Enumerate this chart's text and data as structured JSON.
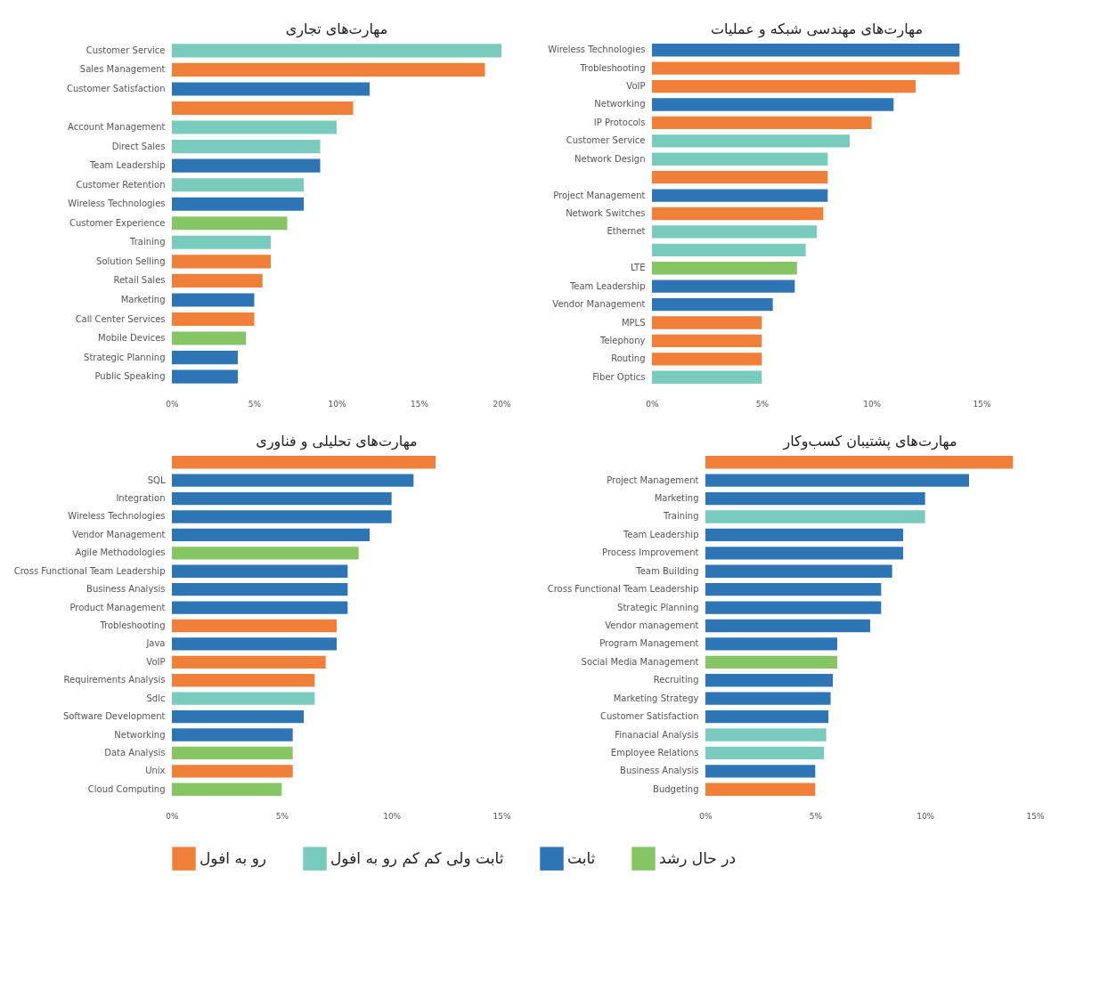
{
  "chart_data": [
    {
      "type": "bar",
      "orientation": "horizontal",
      "title": "مهارت‌های تجاری",
      "legend": "bottom",
      "categories": [
        "Customer Service",
        "Sales Management",
        "Customer Satisfaction",
        null,
        "Account Management",
        "Direct Sales",
        "Team Leadership",
        "Customer Retention",
        "Wireless Technologies",
        "Customer Experience",
        "Training",
        "Solution Selling",
        "Retail Sales",
        "Marketing",
        "Call Center Services",
        "Mobile Devices",
        "Strategic Planning",
        "Public Speaking"
      ],
      "series": [
        {
          "name": "رو به افول",
          "color": "#f07f3a",
          "values": [
            null,
            19,
            null,
            11,
            null,
            null,
            null,
            null,
            null,
            null,
            null,
            6,
            5.5,
            null,
            5,
            null,
            null,
            null
          ]
        },
        {
          "name": "ثابت ولی کم کم رو به افول",
          "color": "#79cbbd",
          "values": [
            20,
            null,
            null,
            null,
            10,
            9,
            null,
            8,
            null,
            null,
            6,
            null,
            null,
            null,
            null,
            null,
            null,
            null
          ]
        },
        {
          "name": "ثابت",
          "color": "#2e75b6",
          "values": [
            null,
            null,
            12,
            null,
            null,
            null,
            9,
            null,
            8,
            null,
            null,
            null,
            null,
            5,
            null,
            null,
            4,
            4
          ]
        },
        {
          "name": "در حال رشد",
          "color": "#86c563",
          "values": [
            null,
            null,
            null,
            null,
            null,
            null,
            null,
            null,
            null,
            7,
            null,
            null,
            null,
            null,
            null,
            4.5,
            null,
            null
          ]
        }
      ],
      "xlim": [
        0,
        20
      ],
      "xticks": [
        {
          "value": 0,
          "label": "0%"
        },
        {
          "value": 5,
          "label": "5%"
        },
        {
          "value": 10,
          "label": "10%"
        },
        {
          "value": 15,
          "label": "15%"
        },
        {
          "value": 20,
          "label": "20%"
        }
      ]
    },
    {
      "type": "bar",
      "orientation": "horizontal",
      "title": "مهارت‌های مهندسی شبکه و عملیات",
      "legend": "bottom",
      "categories": [
        "Wireless Technologies",
        "Trobleshooting",
        "VoIP",
        "Networking",
        "IP Protocols",
        "Customer Service",
        "Network Design",
        null,
        "Project Management",
        "Network Switches",
        "Ethernet",
        null,
        "LTE",
        "Team Leadership",
        "Vendor Management",
        "MPLS",
        "Telephony",
        "Routing",
        "Fiber Optics"
      ],
      "series": [
        {
          "name": "رو به افول",
          "color": "#f07f3a",
          "values": [
            null,
            14,
            12,
            null,
            10,
            null,
            null,
            8,
            null,
            7.8,
            null,
            null,
            null,
            null,
            null,
            5,
            5,
            5,
            null
          ]
        },
        {
          "name": "ثابت ولی کم کم رو به افول",
          "color": "#79cbbd",
          "values": [
            null,
            null,
            null,
            null,
            null,
            9,
            8,
            null,
            null,
            null,
            7.5,
            7,
            null,
            null,
            null,
            null,
            null,
            null,
            5
          ]
        },
        {
          "name": "ثابت",
          "color": "#2e75b6",
          "values": [
            14,
            null,
            null,
            11,
            null,
            null,
            null,
            null,
            8,
            null,
            null,
            null,
            null,
            6.5,
            5.5,
            null,
            null,
            null,
            null
          ]
        },
        {
          "name": "در حال رشد",
          "color": "#86c563",
          "values": [
            null,
            null,
            null,
            null,
            null,
            null,
            null,
            null,
            null,
            null,
            null,
            null,
            6.6,
            null,
            null,
            null,
            null,
            null,
            null
          ]
        }
      ],
      "xlim": [
        0,
        15
      ],
      "xticks": [
        {
          "value": 0,
          "label": "0%"
        },
        {
          "value": 5,
          "label": "5%"
        },
        {
          "value": 10,
          "label": "10%"
        },
        {
          "value": 15,
          "label": "15%"
        }
      ]
    },
    {
      "type": "bar",
      "orientation": "horizontal",
      "title": "مهارت‌های تحلیلی و فناوری",
      "legend": "bottom",
      "categories": [
        null,
        "SQL",
        "Integration",
        "Wireless Technologies",
        "Vendor Management",
        "Agile Methodologies",
        "Cross Functional Team Leadership",
        "Business Analysis",
        "Product Management",
        "Trobleshooting",
        "Java",
        "VoIP",
        "Requirements Analysis",
        "Sdlc",
        "Software Development",
        "Networking",
        "Data Analysis",
        "Unix",
        "Cloud Computing"
      ],
      "series": [
        {
          "name": "رو به افول",
          "color": "#f07f3a",
          "values": [
            12,
            null,
            null,
            null,
            null,
            null,
            null,
            null,
            null,
            7.5,
            null,
            7,
            6.5,
            null,
            null,
            null,
            null,
            5.5,
            null
          ]
        },
        {
          "name": "ثابت ولی کم کم رو به افول",
          "color": "#79cbbd",
          "values": [
            null,
            null,
            null,
            null,
            null,
            null,
            null,
            null,
            null,
            null,
            null,
            null,
            null,
            6.5,
            null,
            null,
            null,
            null,
            null
          ]
        },
        {
          "name": "ثابت",
          "color": "#2e75b6",
          "values": [
            null,
            11,
            10,
            10,
            9,
            null,
            8,
            8,
            8,
            null,
            7.5,
            null,
            null,
            null,
            6,
            5.5,
            null,
            null,
            null
          ]
        },
        {
          "name": "در حال رشد",
          "color": "#86c563",
          "values": [
            null,
            null,
            null,
            null,
            null,
            8.5,
            null,
            null,
            null,
            null,
            null,
            null,
            null,
            null,
            null,
            null,
            5.5,
            null,
            5
          ]
        }
      ],
      "xlim": [
        0,
        15
      ],
      "xticks": [
        {
          "value": 0,
          "label": "0%"
        },
        {
          "value": 5,
          "label": "5%"
        },
        {
          "value": 10,
          "label": "10%"
        },
        {
          "value": 15,
          "label": "15%"
        }
      ]
    },
    {
      "type": "bar",
      "orientation": "horizontal",
      "title": "مهارت‌های پشتیبان کسب‌وکار",
      "legend": "bottom",
      "categories": [
        null,
        "Project Management",
        "Marketing",
        "Training",
        "Team Leadership",
        "Process Improvement",
        "Team Building",
        "Cross Functional Team Leadership",
        "Strategic Planning",
        "Vendor management",
        "Program Management",
        "Social Media Management",
        "Recruiting",
        "Marketing Strategy",
        "Customer Satisfaction",
        "Finanacial Analysis",
        "Employee Relations",
        "Business Analysis",
        "Budgeting"
      ],
      "series": [
        {
          "name": "رو به افول",
          "color": "#f07f3a",
          "values": [
            14,
            null,
            null,
            null,
            null,
            null,
            null,
            null,
            null,
            null,
            null,
            null,
            null,
            null,
            null,
            null,
            null,
            null,
            5
          ]
        },
        {
          "name": "ثابت ولی کم کم رو به افول",
          "color": "#79cbbd",
          "values": [
            null,
            null,
            null,
            10,
            null,
            null,
            null,
            null,
            null,
            null,
            null,
            null,
            null,
            null,
            null,
            5.5,
            5.4,
            null,
            null
          ]
        },
        {
          "name": "ثابت",
          "color": "#2e75b6",
          "values": [
            null,
            12,
            10,
            null,
            9,
            9,
            8.5,
            8,
            8,
            7.5,
            6,
            null,
            5.8,
            5.7,
            5.6,
            null,
            null,
            5,
            null
          ]
        },
        {
          "name": "در حال رشد",
          "color": "#86c563",
          "values": [
            null,
            null,
            null,
            null,
            null,
            null,
            null,
            null,
            null,
            null,
            null,
            6,
            null,
            null,
            null,
            null,
            null,
            null,
            null
          ]
        }
      ],
      "xlim": [
        0,
        15
      ],
      "xticks": [
        {
          "value": 0,
          "label": "0%"
        },
        {
          "value": 5,
          "label": "5%"
        },
        {
          "value": 10,
          "label": "10%"
        },
        {
          "value": 15,
          "label": "15%"
        }
      ]
    }
  ]
}
